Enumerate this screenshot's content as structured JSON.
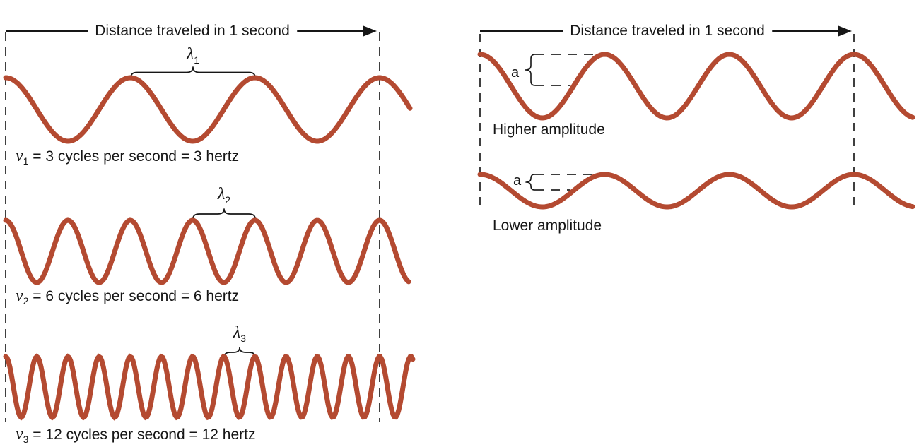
{
  "figure": {
    "background": "#ffffff",
    "description": "Sinusoidal waves comparing frequency (left) and amplitude (right)"
  },
  "palette": {
    "wave": "#b44a31",
    "dashed_guide": "#3f3f3f",
    "ink": "#161616"
  },
  "left_panel": {
    "arrow_label": "Distance traveled in 1 second",
    "rows": [
      {
        "wavelength_symbol": "λ",
        "wavelength_subscript": "1",
        "frequency_symbol": "ν",
        "frequency_subscript": "1",
        "caption_rest": " = 3 cycles per second = 3 hertz",
        "cycles_per_second": 3
      },
      {
        "wavelength_symbol": "λ",
        "wavelength_subscript": "2",
        "frequency_symbol": "ν",
        "frequency_subscript": "2",
        "caption_rest": " = 6 cycles per second = 6 hertz",
        "cycles_per_second": 6
      },
      {
        "wavelength_symbol": "λ",
        "wavelength_subscript": "3",
        "frequency_symbol": "ν",
        "frequency_subscript": "3",
        "caption_rest": " = 12 cycles per second = 12 hertz",
        "cycles_per_second": 12
      }
    ]
  },
  "right_panel": {
    "arrow_label": "Distance traveled in 1 second",
    "rows": [
      {
        "amplitude_symbol": "a",
        "caption": "Higher amplitude",
        "cycles_per_second": 3,
        "relative_amplitude": "higher"
      },
      {
        "amplitude_symbol": "a",
        "caption": "Lower amplitude",
        "cycles_per_second": 3,
        "relative_amplitude": "lower"
      }
    ]
  }
}
